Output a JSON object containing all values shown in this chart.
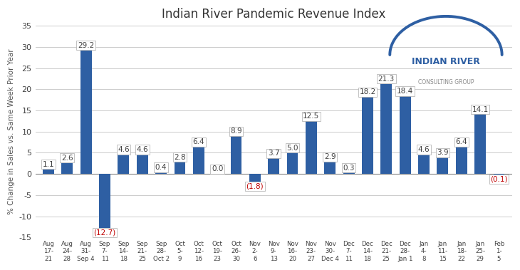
{
  "title": "Indian River Pandemic Revenue Index",
  "ylabel": "% Change in Sales vs. Same Week Prior Year",
  "categories": [
    "Aug\n17-\n21",
    "Aug\n24-\n28",
    "Aug\n31-\nSep 4",
    "Sep\n7-\n11",
    "Sep\n14-\n18",
    "Sep\n21-\n25",
    "Sep\n28-\nOct 2",
    "Oct\n5-\n9",
    "Oct\n12-\n16",
    "Oct\n19-\n23",
    "Oct\n26-\n30",
    "Nov\n2-\n6",
    "Nov\n9-\n13",
    "Nov\n16-\n20",
    "Nov\n23-\n27",
    "Nov\n30-\nDec 4",
    "Dec\n7-\n11",
    "Dec\n14-\n18",
    "Dec\n21-\n25",
    "Dec\n28-\nJan 1",
    "Jan\n4-\n8",
    "Jan\n11-\n15",
    "Jan\n18-\n22",
    "Jan\n25-\n29",
    "Feb\n1-\n5"
  ],
  "values": [
    1.1,
    2.6,
    29.2,
    -12.7,
    4.6,
    4.6,
    0.4,
    2.8,
    6.4,
    0.0,
    8.9,
    -1.8,
    3.7,
    5.0,
    12.5,
    2.9,
    0.3,
    18.2,
    21.3,
    18.4,
    4.6,
    3.9,
    6.4,
    14.1,
    -0.1
  ],
  "bar_color": "#2E5FA3",
  "label_color_negative": "#C00000",
  "label_color_positive": "#404040",
  "ylim": [
    -15,
    35
  ],
  "yticks": [
    -15,
    -10,
    -5,
    0,
    5,
    10,
    15,
    20,
    25,
    30,
    35
  ],
  "background_color": "#FFFFFF",
  "grid_color": "#CCCCCC",
  "title_fontsize": 12,
  "label_fontsize": 7.5,
  "ylabel_fontsize": 7.5,
  "xtick_fontsize": 6.2,
  "ytick_fontsize": 8,
  "logo_main_color": "#2E5FA3",
  "logo_sub_color": "#888888",
  "logo_arc_color": "#2E5FA3"
}
